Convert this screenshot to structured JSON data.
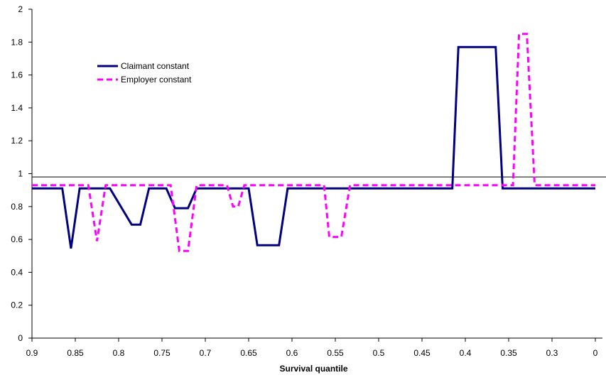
{
  "chart_data": {
    "type": "line",
    "title": "",
    "xlabel": "Survival quantile",
    "ylabel": "",
    "xlim": [
      0.9,
      0.25
    ],
    "ylim": [
      0,
      2
    ],
    "x_ticks": [
      "0.9",
      "0.85",
      "0.8",
      "0.75",
      "0.7",
      "0.65",
      "0.6",
      "0.55",
      "0.5",
      "0.45",
      "0.4",
      "0.35",
      "0.3",
      "0"
    ],
    "y_ticks": [
      "0",
      "0.2",
      "0.4",
      "0.6",
      "0.8",
      "1",
      "1.2",
      "1.4",
      "1.6",
      "1.8",
      "2"
    ],
    "reference_line": 0.98,
    "legend_position": "upper-left",
    "series": [
      {
        "name": "Claimant constant",
        "color": "#000080",
        "style": "solid",
        "points": [
          [
            0.9,
            0.91
          ],
          [
            0.865,
            0.91
          ],
          [
            0.855,
            0.545
          ],
          [
            0.845,
            0.91
          ],
          [
            0.81,
            0.91
          ],
          [
            0.785,
            0.69
          ],
          [
            0.775,
            0.69
          ],
          [
            0.765,
            0.91
          ],
          [
            0.745,
            0.91
          ],
          [
            0.735,
            0.79
          ],
          [
            0.72,
            0.79
          ],
          [
            0.71,
            0.91
          ],
          [
            0.65,
            0.91
          ],
          [
            0.64,
            0.565
          ],
          [
            0.615,
            0.565
          ],
          [
            0.605,
            0.91
          ],
          [
            0.415,
            0.91
          ],
          [
            0.408,
            1.77
          ],
          [
            0.365,
            1.77
          ],
          [
            0.357,
            0.91
          ],
          [
            0.25,
            0.91
          ]
        ]
      },
      {
        "name": "Employer constant",
        "color": "#ff00ff",
        "style": "dashed",
        "points": [
          [
            0.9,
            0.93
          ],
          [
            0.835,
            0.93
          ],
          [
            0.825,
            0.59
          ],
          [
            0.815,
            0.93
          ],
          [
            0.74,
            0.93
          ],
          [
            0.73,
            0.53
          ],
          [
            0.72,
            0.53
          ],
          [
            0.71,
            0.93
          ],
          [
            0.675,
            0.93
          ],
          [
            0.668,
            0.8
          ],
          [
            0.662,
            0.8
          ],
          [
            0.655,
            0.93
          ],
          [
            0.563,
            0.93
          ],
          [
            0.557,
            0.615
          ],
          [
            0.543,
            0.615
          ],
          [
            0.533,
            0.93
          ],
          [
            0.345,
            0.93
          ],
          [
            0.338,
            1.85
          ],
          [
            0.329,
            1.85
          ],
          [
            0.32,
            0.93
          ],
          [
            0.25,
            0.93
          ]
        ]
      }
    ]
  }
}
